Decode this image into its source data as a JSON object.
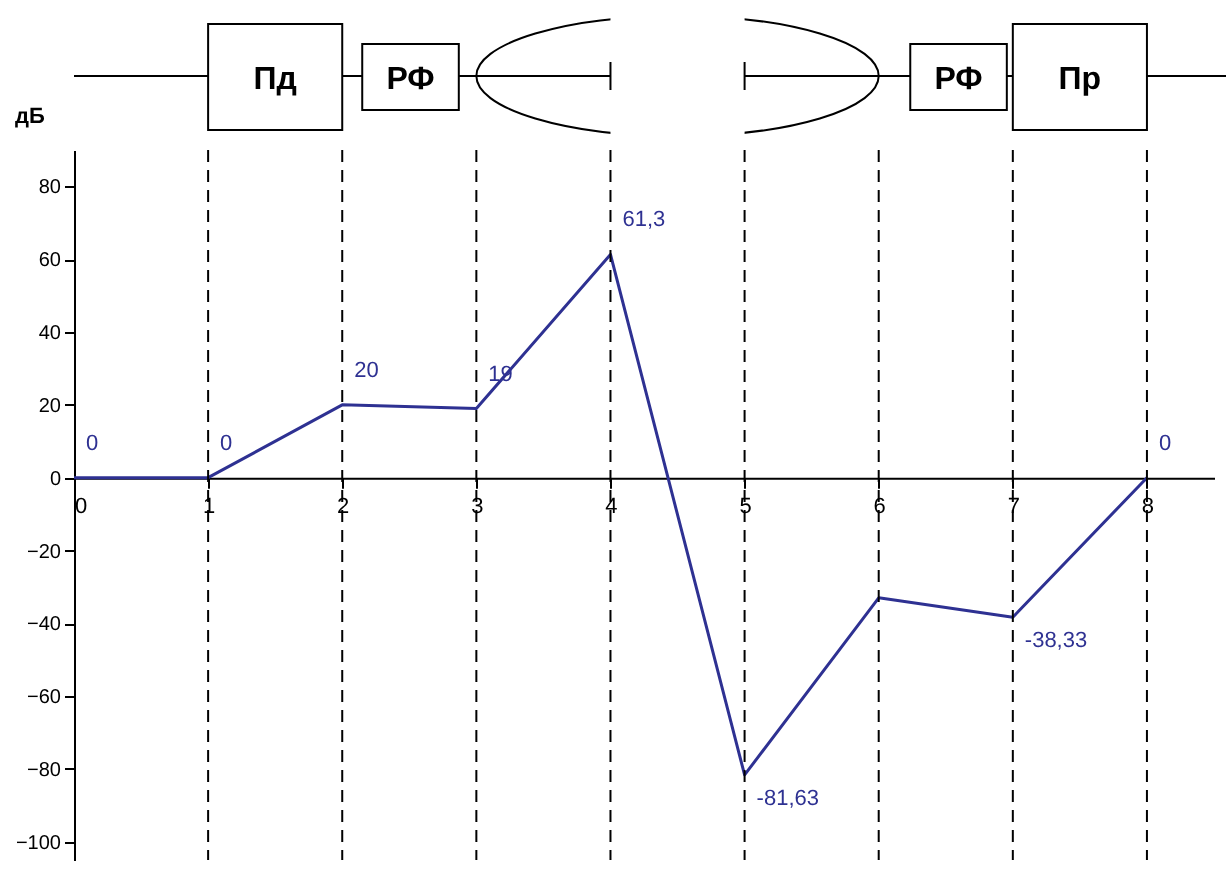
{
  "chart_data": {
    "type": "line",
    "ylabel": "дБ",
    "x": [
      0,
      1,
      2,
      3,
      4,
      5,
      6,
      7,
      8
    ],
    "series": [
      {
        "color": "#2e3192",
        "values": [
          0,
          0,
          20,
          19,
          61.3,
          -81.63,
          -33,
          -38.33,
          0
        ],
        "value_labels": [
          "0",
          "0",
          "20",
          "19",
          "61,3",
          "-81,63",
          null,
          "-38,33",
          "0"
        ]
      }
    ],
    "xlim": [
      0,
      8.5
    ],
    "ylim": [
      -105,
      90
    ],
    "xticks": [
      0,
      1,
      2,
      3,
      4,
      5,
      6,
      7,
      8
    ],
    "yticks": [
      -100,
      -80,
      -60,
      -40,
      -20,
      0,
      20,
      40,
      60,
      80
    ],
    "ref_lines": [
      {
        "axis": "x",
        "value": 1,
        "line_style": "dashed"
      },
      {
        "axis": "x",
        "value": 2,
        "line_style": "dashed"
      },
      {
        "axis": "x",
        "value": 3,
        "line_style": "dashed"
      },
      {
        "axis": "x",
        "value": 4,
        "line_style": "dashed"
      },
      {
        "axis": "x",
        "value": 5,
        "line_style": "dashed"
      },
      {
        "axis": "x",
        "value": 6,
        "line_style": "dashed"
      },
      {
        "axis": "x",
        "value": 7,
        "line_style": "dashed"
      },
      {
        "axis": "x",
        "value": 8,
        "line_style": "dashed"
      }
    ],
    "annotations": [
      "Пд",
      "РФ",
      "РФ",
      "Пр"
    ],
    "grid": false
  }
}
